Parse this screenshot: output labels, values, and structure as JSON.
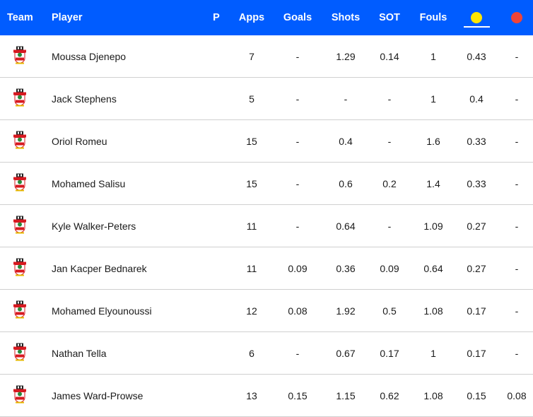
{
  "header": {
    "team": "Team",
    "player": "Player",
    "p": "P",
    "apps": "Apps",
    "goals": "Goals",
    "shots": "Shots",
    "sot": "SOT",
    "fouls": "Fouls",
    "yellow_icon": "yellow-card-icon",
    "red_icon": "red-card-icon"
  },
  "colors": {
    "header_bg": "#005cff",
    "yellow": "#ffe600",
    "red": "#f04438"
  },
  "rows": [
    {
      "player": "Moussa Djenepo",
      "p": "",
      "apps": "7",
      "goals": "-",
      "shots": "1.29",
      "sot": "0.14",
      "fouls": "1",
      "yellow": "0.43",
      "red": "-"
    },
    {
      "player": "Jack Stephens",
      "p": "",
      "apps": "5",
      "goals": "-",
      "shots": "-",
      "sot": "-",
      "fouls": "1",
      "yellow": "0.4",
      "red": "-"
    },
    {
      "player": "Oriol Romeu",
      "p": "",
      "apps": "15",
      "goals": "-",
      "shots": "0.4",
      "sot": "-",
      "fouls": "1.6",
      "yellow": "0.33",
      "red": "-"
    },
    {
      "player": "Mohamed Salisu",
      "p": "",
      "apps": "15",
      "goals": "-",
      "shots": "0.6",
      "sot": "0.2",
      "fouls": "1.4",
      "yellow": "0.33",
      "red": "-"
    },
    {
      "player": "Kyle Walker-Peters",
      "p": "",
      "apps": "11",
      "goals": "-",
      "shots": "0.64",
      "sot": "-",
      "fouls": "1.09",
      "yellow": "0.27",
      "red": "-"
    },
    {
      "player": "Jan Kacper Bednarek",
      "p": "",
      "apps": "11",
      "goals": "0.09",
      "shots": "0.36",
      "sot": "0.09",
      "fouls": "0.64",
      "yellow": "0.27",
      "red": "-"
    },
    {
      "player": "Mohamed Elyounoussi",
      "p": "",
      "apps": "12",
      "goals": "0.08",
      "shots": "1.92",
      "sot": "0.5",
      "fouls": "1.08",
      "yellow": "0.17",
      "red": "-"
    },
    {
      "player": "Nathan Tella",
      "p": "",
      "apps": "6",
      "goals": "-",
      "shots": "0.67",
      "sot": "0.17",
      "fouls": "1",
      "yellow": "0.17",
      "red": "-"
    },
    {
      "player": "James Ward-Prowse",
      "p": "",
      "apps": "13",
      "goals": "0.15",
      "shots": "1.15",
      "sot": "0.62",
      "fouls": "1.08",
      "yellow": "0.15",
      "red": "0.08"
    }
  ]
}
